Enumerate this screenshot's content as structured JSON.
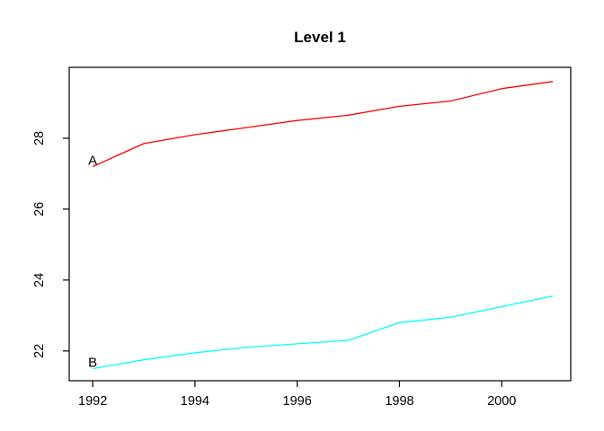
{
  "chart_data": {
    "type": "line",
    "title": "Level 1",
    "xlabel": "",
    "ylabel": "",
    "x": [
      1992,
      1993,
      1994,
      1995,
      1996,
      1997,
      1998,
      1999,
      2000,
      2001
    ],
    "series": [
      {
        "name": "A",
        "color": "#ff0000",
        "values": [
          27.2,
          27.85,
          28.1,
          28.3,
          28.5,
          28.65,
          28.9,
          29.05,
          29.4,
          29.6
        ]
      },
      {
        "name": "B",
        "color": "#00ffff",
        "values": [
          21.5,
          21.75,
          21.95,
          22.1,
          22.2,
          22.3,
          22.8,
          22.95,
          23.25,
          23.55
        ]
      }
    ],
    "x_ticks": [
      1992,
      1994,
      1996,
      1998,
      2000
    ],
    "y_ticks": [
      22,
      24,
      26,
      28
    ],
    "xlim": [
      1991.54,
      2001.35
    ],
    "ylim": [
      21.16,
      30.0
    ],
    "grid": false,
    "legend": "inline point labels at first data point",
    "frame_color": "#000000",
    "background_color": "#ffffff"
  }
}
